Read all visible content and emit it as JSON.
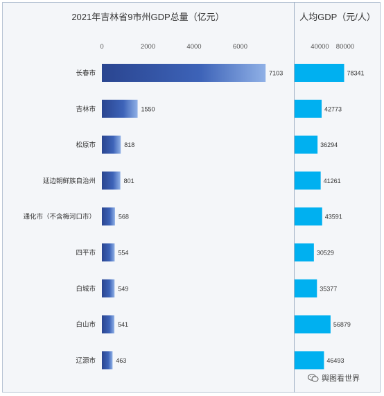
{
  "chart_data": [
    {
      "type": "bar",
      "orientation": "horizontal",
      "title": "2021年吉林省9市州GDP总量（亿元）",
      "categories": [
        "长春市",
        "吉林市",
        "松原市",
        "延边朝鲜族自治州",
        "通化市（不含梅河口市）",
        "四平市",
        "白城市",
        "白山市",
        "辽源市"
      ],
      "values": [
        7103,
        1550,
        818,
        801,
        568,
        554,
        549,
        541,
        463
      ],
      "xticks": [
        0,
        2000,
        4000,
        6000
      ],
      "xlim": [
        0,
        8000
      ],
      "axis_position": "top",
      "bar_color": "#2f4e9c",
      "grid": false
    },
    {
      "type": "bar",
      "orientation": "horizontal",
      "title": "人均GDP（元/人）",
      "categories": [
        "长春市",
        "吉林市",
        "松原市",
        "延边朝鲜族自治州",
        "通化市（不含梅河口市）",
        "四平市",
        "白城市",
        "白山市",
        "辽源市"
      ],
      "values": [
        78341,
        42773,
        36294,
        41261,
        43591,
        30529,
        35377,
        56879,
        46493
      ],
      "xticks": [
        40000,
        80000
      ],
      "xlim": [
        0,
        120000
      ],
      "axis_position": "top",
      "bar_color": "#00b0f0",
      "grid": false
    }
  ],
  "watermark": {
    "text": "舆图看世界",
    "icon": "wechat-icon"
  }
}
